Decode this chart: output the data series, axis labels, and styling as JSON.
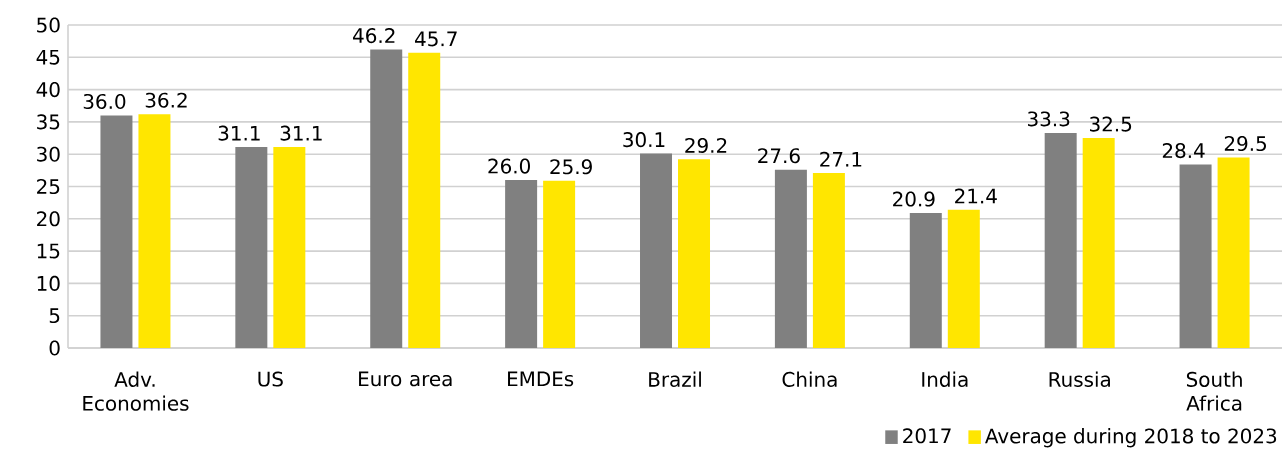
{
  "chart_data": {
    "type": "bar",
    "categories": [
      "Adv. Economies",
      "US",
      "Euro area",
      "EMDEs",
      "Brazil",
      "China",
      "India",
      "Russia",
      "South Africa"
    ],
    "series": [
      {
        "name": "2017",
        "color": "#808080",
        "values": [
          36.0,
          31.1,
          46.2,
          26.0,
          30.1,
          27.6,
          20.9,
          33.3,
          28.4
        ],
        "value_labels": [
          "36.0",
          "31.1",
          "46.2",
          "26.0",
          "30.1",
          "27.6",
          "20.9",
          "33.3",
          "28.4"
        ]
      },
      {
        "name": "Average during 2018 to 2023",
        "color": "#ffe600",
        "values": [
          36.2,
          31.1,
          45.7,
          25.9,
          29.2,
          27.1,
          21.4,
          32.5,
          29.5
        ],
        "value_labels": [
          "36.2",
          "31.1",
          "45.7",
          "25.9",
          "29.2",
          "27.1",
          "21.4",
          "32.5",
          "29.5"
        ]
      }
    ],
    "ylim": [
      0,
      50
    ],
    "yticks": [
      0,
      5,
      10,
      15,
      20,
      25,
      30,
      35,
      40,
      45,
      50
    ],
    "grid": "y",
    "legend": "bottom right"
  }
}
